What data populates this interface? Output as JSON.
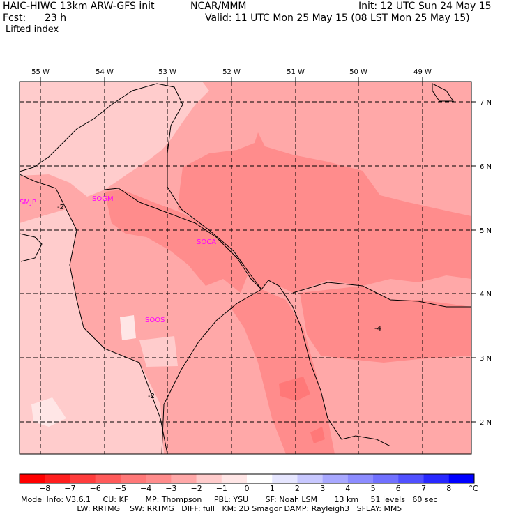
{
  "header": {
    "model": "HAIC-HIWC 13km ARW-GFS init",
    "center": "NCAR/MMM",
    "init": "Init: 12 UTC Sun 24 May 15",
    "fcst_label": "Fcst:",
    "fcst_value": "23 h",
    "valid": "Valid: 11 UTC Mon 25 May 15 (08 LST Mon 25 May 15)",
    "field": "Lifted index"
  },
  "map": {
    "lon_labels": [
      "55 W",
      "54 W",
      "53 W",
      "52 W",
      "51 W",
      "50 W",
      "49 W"
    ],
    "lat_labels": [
      "7 N",
      "6 N",
      "5 N",
      "4 N",
      "3 N",
      "2 N"
    ],
    "stations": [
      "SMJP",
      "SOGM",
      "SOCA",
      "SOOS"
    ],
    "contour_labels": [
      "-2",
      "-4",
      "-2"
    ],
    "colors": {
      "deep": "#ff8c8c",
      "mid": "#ffa8a8",
      "light": "#ffcccc",
      "pale": "#ffe6e6",
      "station": "#ff00ff"
    }
  },
  "colorbar": {
    "colors": [
      "#ff0000",
      "#ff1e1e",
      "#ff3c3c",
      "#ff5a5a",
      "#ff7878",
      "#ff8c8c",
      "#ffa8a8",
      "#ffcccc",
      "#ffe6e6",
      "#ffffff",
      "#e6e6ff",
      "#c8c8ff",
      "#a8a8ff",
      "#8c8cff",
      "#7070ff",
      "#5050ff",
      "#2828ff",
      "#0000ff"
    ],
    "labels": [
      "−8",
      "−7",
      "−6",
      "−5",
      "−4",
      "−3",
      "−2",
      "−1",
      "0",
      "1",
      "2",
      "3",
      "4",
      "5",
      "6",
      "7",
      "8"
    ],
    "unit": "°C"
  },
  "footer": {
    "line1": "Model Info: V3.6.1     CU: KF       MP: Thompson     PBL: YSU       SF: Noah LSM       13 km     51 levels   60 sec",
    "line2": "                       LW: RRTMG    SW: RRTMG   DIFF: full   KM: 2D Smagor DAMP: Rayleigh3   SFLAY: MM5"
  }
}
